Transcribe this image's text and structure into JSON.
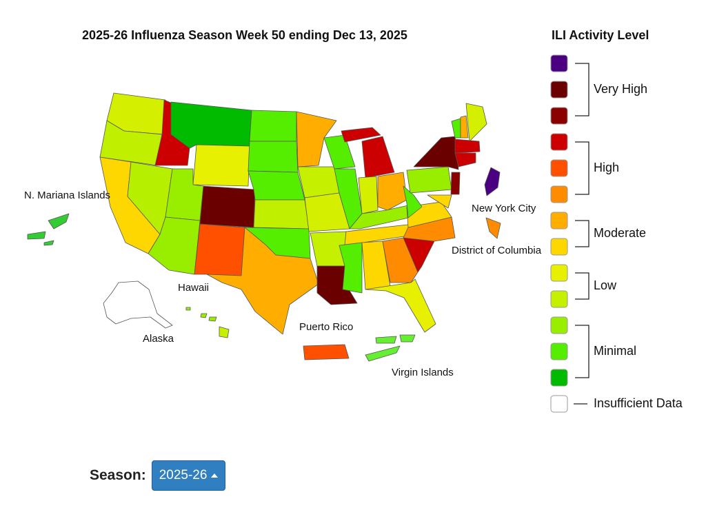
{
  "title": "2025-26 Influenza Season Week 50 ending Dec 13, 2025",
  "map": {
    "labels": [
      "N. Mariana Islands",
      "New York City",
      "District of Columbia",
      "Hawaii",
      "Alaska",
      "Puerto Rico",
      "Virgin Islands"
    ]
  },
  "legend": {
    "title": "ILI Activity Level",
    "groups": [
      {
        "label": "Very High",
        "colors": [
          "#4b0082",
          "#6b0000",
          "#8b0000"
        ]
      },
      {
        "label": "High",
        "colors": [
          "#cc0000",
          "#ff5000",
          "#ff8c00"
        ]
      },
      {
        "label": "Moderate",
        "colors": [
          "#ffae00",
          "#ffd700"
        ]
      },
      {
        "label": "Low",
        "colors": [
          "#e6f000",
          "#c5f000"
        ]
      },
      {
        "label": "Minimal",
        "colors": [
          "#99ee00",
          "#55ee00",
          "#00bb00"
        ]
      },
      {
        "label": "Insufficient Data",
        "colors": [
          "#ffffff"
        ]
      }
    ]
  },
  "season": {
    "label": "Season:",
    "button": "2025-26"
  }
}
